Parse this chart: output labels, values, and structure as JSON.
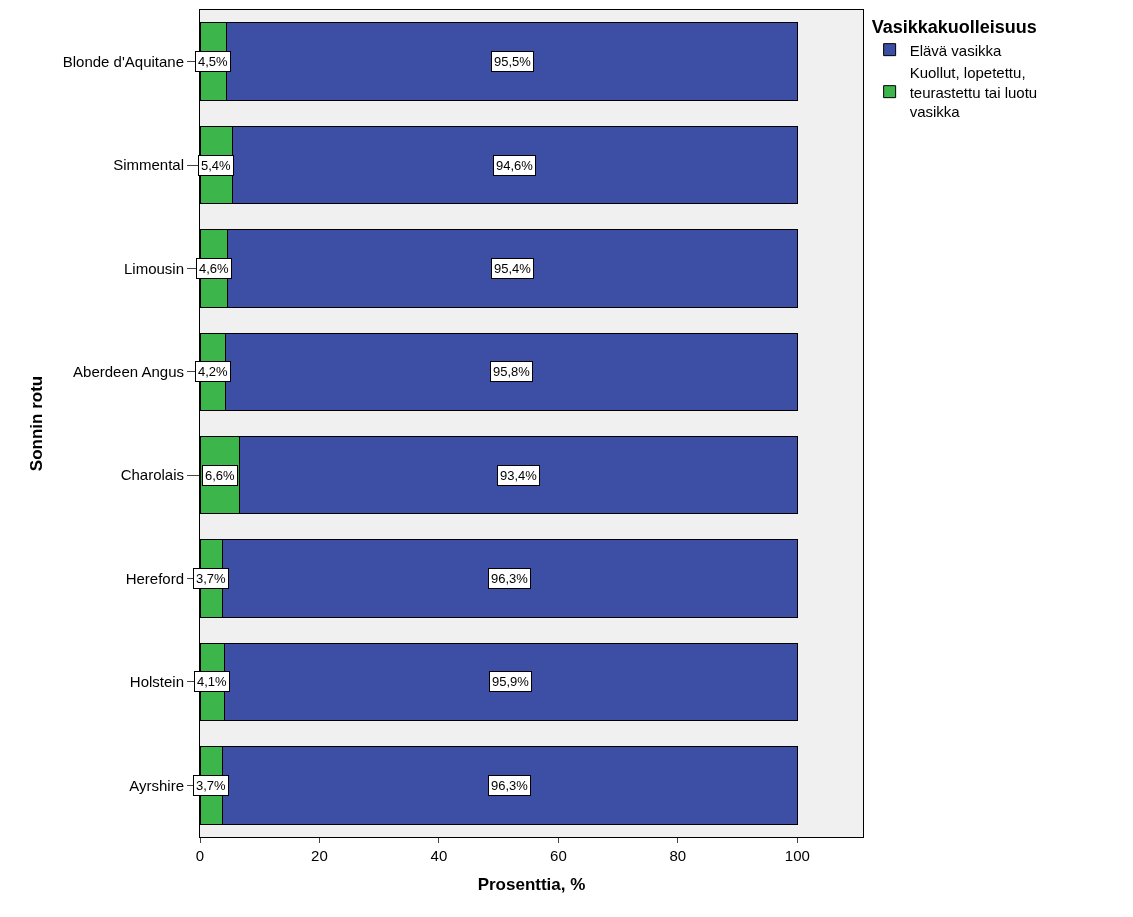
{
  "chart_data": {
    "type": "bar",
    "orientation": "horizontal",
    "stacked": true,
    "xlabel": "Prosenttia, %",
    "ylabel": "Sonnin rotu",
    "legend_title": "Vasikkakuolleisuus",
    "legend": "top right",
    "grid": false,
    "categories": [
      "Blonde d'Aquitane",
      "Simmental",
      "Limousin",
      "Aberdeen Angus",
      "Charolais",
      "Hereford",
      "Holstein",
      "Ayrshire"
    ],
    "xlim": [
      0,
      111
    ],
    "xticks": [
      0,
      20,
      40,
      60,
      80,
      100
    ],
    "series": [
      {
        "name": "Kuollut, lopetettu, teurastettu tai luotu vasikka",
        "color": "#3cb54a",
        "values": [
          4.5,
          5.4,
          4.6,
          4.2,
          6.6,
          3.7,
          4.1,
          3.7
        ],
        "value_labels": [
          "4,5%",
          "5,4%",
          "4,6%",
          "4,2%",
          "6,6%",
          "3,7%",
          "4,1%",
          "3,7%"
        ]
      },
      {
        "name": "Elävä vasikka",
        "color": "#3d4fa5",
        "values": [
          95.5,
          94.6,
          95.4,
          95.8,
          93.4,
          96.3,
          95.9,
          96.3
        ],
        "value_labels": [
          "95,5%",
          "94,6%",
          "95,4%",
          "95,8%",
          "93,4%",
          "96,3%",
          "95,9%",
          "96,3%"
        ]
      }
    ]
  }
}
